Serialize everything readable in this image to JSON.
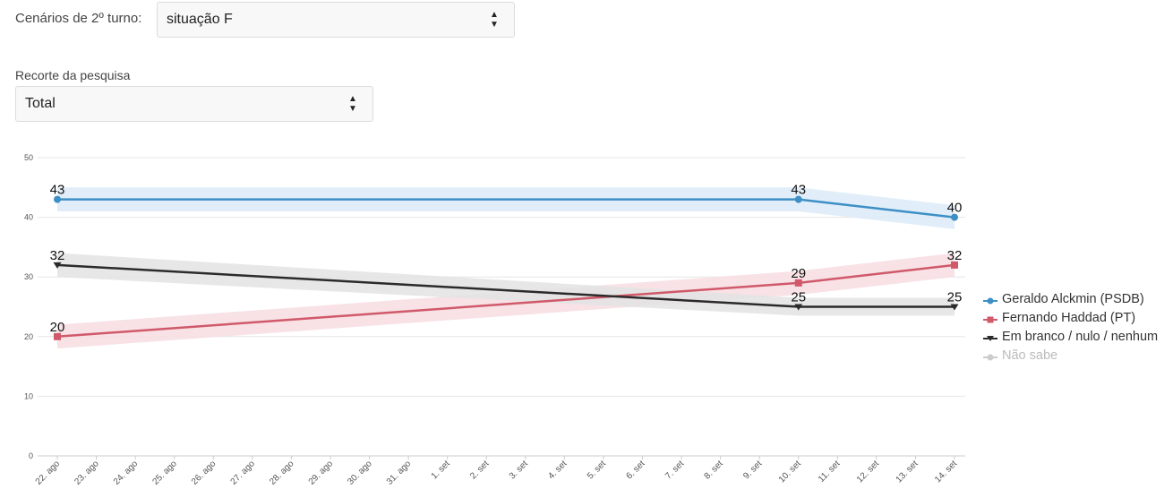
{
  "controls": {
    "scenario_label": "Cenários de 2º turno:",
    "scenario_value": "situação F",
    "cut_label": "Recorte da pesquisa",
    "cut_value": "Total"
  },
  "chart_data": {
    "type": "line",
    "title": "",
    "xlabel": "",
    "ylabel": "",
    "ylim": [
      0,
      50
    ],
    "y_ticks": [
      0,
      10,
      20,
      30,
      40,
      50
    ],
    "grid": true,
    "legend_position": "right",
    "categories": [
      "22. ago",
      "23. ago",
      "24. ago",
      "25. ago",
      "26. ago",
      "27. ago",
      "28. ago",
      "29. ago",
      "30. ago",
      "31. ago",
      "1. set",
      "2. set",
      "3. set",
      "4. set",
      "5. set",
      "6. set",
      "7. set",
      "8. set",
      "9. set",
      "10. set",
      "11. set",
      "12. set",
      "13. set",
      "14. set"
    ],
    "series": [
      {
        "name": "Geraldo Alckmin (PSDB)",
        "color": "#3d8fc6",
        "band_color": "#dcebf8",
        "marker": "circle",
        "points": [
          {
            "x": "22. ago",
            "y": 43,
            "lo": 41,
            "hi": 45
          },
          {
            "x": "10. set",
            "y": 43,
            "lo": 41,
            "hi": 45
          },
          {
            "x": "14. set",
            "y": 40,
            "lo": 38,
            "hi": 42
          }
        ]
      },
      {
        "name": "Fernando Haddad (PT)",
        "color": "#d0596a",
        "band_color": "#f7dde2",
        "marker": "square",
        "points": [
          {
            "x": "22. ago",
            "y": 20,
            "lo": 18,
            "hi": 22
          },
          {
            "x": "10. set",
            "y": 29,
            "lo": 27,
            "hi": 31
          },
          {
            "x": "14. set",
            "y": 32,
            "lo": 30,
            "hi": 34
          }
        ]
      },
      {
        "name": "Em branco / nulo / nenhum",
        "color": "#2b2b2b",
        "band_color": "#e3e3e3",
        "marker": "triangle-down",
        "points": [
          {
            "x": "22. ago",
            "y": 32,
            "lo": 30,
            "hi": 34
          },
          {
            "x": "10. set",
            "y": 25,
            "lo": 23.5,
            "hi": 26.5
          },
          {
            "x": "14. set",
            "y": 25,
            "lo": 23.5,
            "hi": 26.5
          }
        ]
      },
      {
        "name": "Não sabe",
        "color": "#cccccc",
        "marker": "circle",
        "hidden": true,
        "points": []
      }
    ]
  }
}
